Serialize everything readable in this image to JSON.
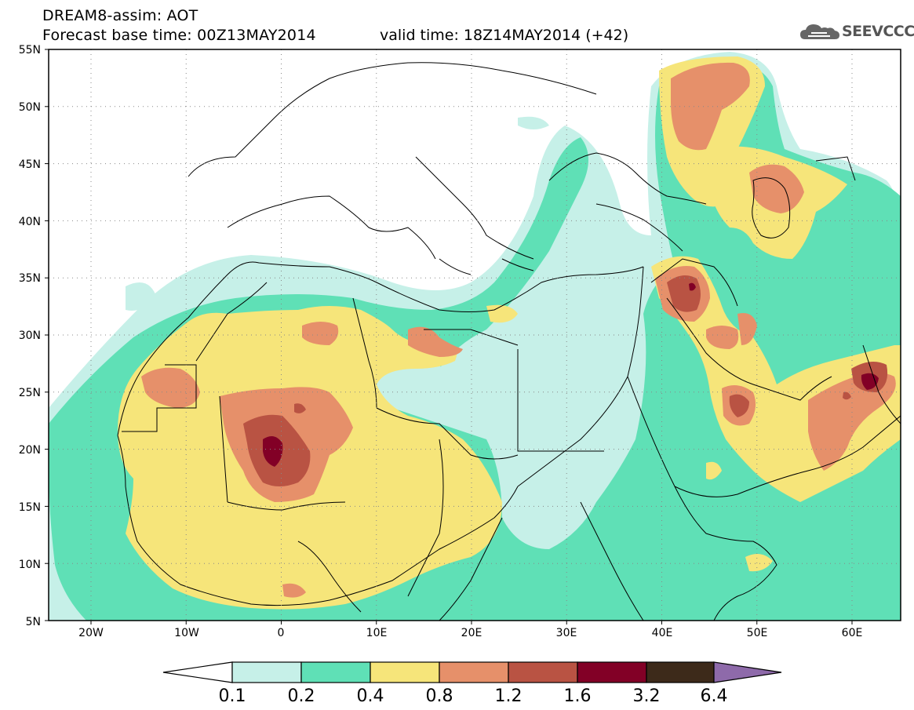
{
  "header": {
    "title_line1": "DREAM8-assim: AOT",
    "title_line2": "Forecast base time: 00Z13MAY2014",
    "valid_time": "valid time: 18Z14MAY2014 (+42)",
    "logo_text": "SEEVCCC",
    "logo_icon": "cloud-logo-icon"
  },
  "map": {
    "lat_ticks": [
      "55N",
      "50N",
      "45N",
      "40N",
      "35N",
      "30N",
      "25N",
      "20N",
      "15N",
      "10N",
      "5N"
    ],
    "lon_ticks": [
      "20W",
      "10W",
      "0",
      "10E",
      "20E",
      "30E",
      "40E",
      "50E",
      "60E"
    ]
  },
  "legend": {
    "labels": [
      "0.1",
      "0.2",
      "0.4",
      "0.8",
      "1.2",
      "1.6",
      "3.2",
      "6.4"
    ],
    "colors": [
      "#ffffff",
      "#c6f0e8",
      "#5fe0b6",
      "#f6e57a",
      "#e6906a",
      "#b95343",
      "#820026",
      "#3d2a1a",
      "#8e6aaa"
    ]
  },
  "palette": {
    "c1": "#c6f0e8",
    "c2": "#5fe0b6",
    "c3": "#f6e57a",
    "c4": "#e6906a",
    "c5": "#b95343",
    "c6": "#820026"
  }
}
